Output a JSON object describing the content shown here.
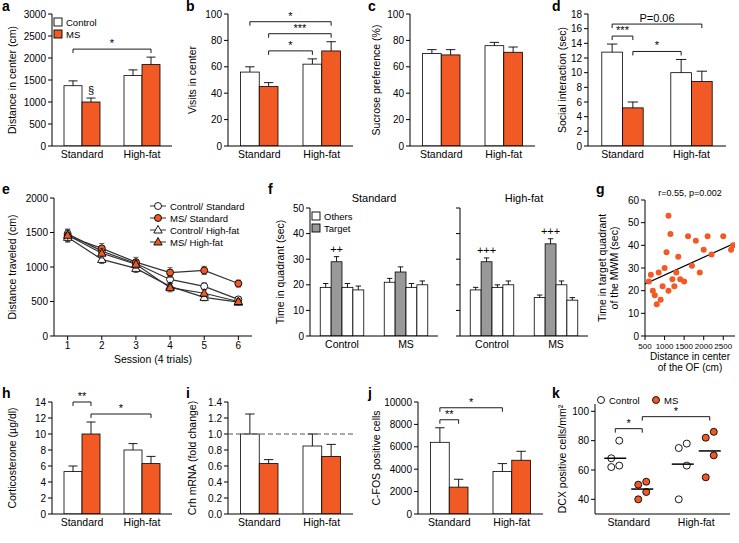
{
  "chart_data": [
    {
      "type": "bar",
      "title": "a",
      "ylabel": "Distance in center (cm)",
      "categories": [
        "Standard",
        "High-fat"
      ],
      "ylim": [
        0,
        3000
      ],
      "yticks": [
        0,
        500,
        1000,
        1500,
        2000,
        2500,
        3000
      ],
      "legend": "upper left",
      "series": [
        {
          "name": "Control",
          "color": "#ffffff",
          "values": [
            1370,
            1600
          ],
          "errors": [
            110,
            130
          ]
        },
        {
          "name": "MS",
          "color": "#f15a24",
          "values": [
            1000,
            1850
          ],
          "errors": [
            90,
            170
          ]
        }
      ],
      "annotations": [
        {
          "text": "§",
          "between": [
            1,
            1
          ]
        },
        {
          "text": "*",
          "between": [
            0,
            3
          ]
        }
      ]
    },
    {
      "type": "bar",
      "title": "b",
      "ylabel": "Visits in center",
      "categories": [
        "Standard",
        "High-fat"
      ],
      "ylim": [
        0,
        100
      ],
      "yticks": [
        0,
        20,
        40,
        60,
        80,
        100
      ],
      "series": [
        {
          "name": "Control",
          "color": "#ffffff",
          "values": [
            56,
            62
          ],
          "errors": [
            4,
            4
          ]
        },
        {
          "name": "MS",
          "color": "#f15a24",
          "values": [
            45,
            72
          ],
          "errors": [
            3,
            7
          ]
        }
      ],
      "annotations": [
        {
          "text": "*",
          "between": [
            1,
            2
          ]
        },
        {
          "text": "***",
          "between": [
            1,
            3
          ]
        },
        {
          "text": "*",
          "between": [
            0,
            3
          ]
        }
      ]
    },
    {
      "type": "bar",
      "title": "c",
      "ylabel": "Sucrose preference (%)",
      "categories": [
        "Standard",
        "High-fat"
      ],
      "ylim": [
        0,
        100
      ],
      "yticks": [
        0,
        20,
        40,
        60,
        80,
        100
      ],
      "series": [
        {
          "name": "Control",
          "color": "#ffffff",
          "values": [
            70,
            76
          ],
          "errors": [
            3,
            2.5
          ]
        },
        {
          "name": "MS",
          "color": "#f15a24",
          "values": [
            69,
            71
          ],
          "errors": [
            4,
            4
          ]
        }
      ]
    },
    {
      "type": "bar",
      "title": "d",
      "ylabel": "Social interaction (sec)",
      "categories": [
        "Standard",
        "High-fat"
      ],
      "ylim": [
        0,
        18
      ],
      "yticks": [
        0,
        2,
        4,
        6,
        8,
        10,
        12,
        14,
        16,
        18
      ],
      "series": [
        {
          "name": "Control",
          "color": "#ffffff",
          "values": [
            12.8,
            10
          ],
          "errors": [
            1.1,
            1.8
          ]
        },
        {
          "name": "MS",
          "color": "#f15a24",
          "values": [
            5.2,
            8.8
          ],
          "errors": [
            0.8,
            1.4
          ]
        }
      ],
      "annotations": [
        {
          "text": "*",
          "between": [
            1,
            2
          ]
        },
        {
          "text": "***",
          "between": [
            0,
            1
          ]
        },
        {
          "text": "P=0.06",
          "between": [
            0,
            3
          ]
        }
      ]
    },
    {
      "type": "line",
      "title": "e",
      "xlabel": "Session (4 trials)",
      "ylabel": "Distance traveled (cm)",
      "x": [
        1,
        2,
        3,
        4,
        5,
        6
      ],
      "xlim": [
        0.6,
        6.4
      ],
      "xticks": [
        1,
        2,
        3,
        4,
        5,
        6
      ],
      "ylim": [
        0,
        2000
      ],
      "yticks": [
        0,
        500,
        1000,
        1500,
        2000
      ],
      "legend": "upper right",
      "series": [
        {
          "name": "Control/ Standard",
          "color": "#ffffff",
          "marker": "circle",
          "values": [
            1480,
            1230,
            1050,
            820,
            720,
            530
          ],
          "errors": [
            70,
            60,
            60,
            60,
            50,
            40
          ]
        },
        {
          "name": "MS/ Standard",
          "color": "#f15a24",
          "marker": "circle",
          "values": [
            1450,
            1270,
            1070,
            920,
            950,
            760
          ],
          "errors": [
            80,
            70,
            70,
            70,
            60,
            50
          ]
        },
        {
          "name": "Control/ High-fat",
          "color": "#ffffff",
          "marker": "triangle",
          "values": [
            1430,
            1110,
            980,
            720,
            560,
            490
          ],
          "errors": [
            70,
            60,
            60,
            50,
            50,
            40
          ]
        },
        {
          "name": "MS/ High-fat",
          "color": "#f15a24",
          "marker": "triangle",
          "values": [
            1460,
            1200,
            1040,
            700,
            620,
            500
          ],
          "errors": [
            80,
            70,
            60,
            60,
            50,
            40
          ]
        }
      ]
    },
    {
      "type": "bar",
      "title": "f",
      "ylabel": "Time in quadrant (sec)",
      "ylim": [
        0,
        50
      ],
      "yticks": [
        0,
        10,
        20,
        30,
        40,
        50
      ],
      "legend": "upper left",
      "subplots": [
        {
          "title": "Standard",
          "categories": [
            "Control",
            "MS"
          ],
          "series": [
            {
              "name": "Others",
              "color": "#ffffff",
              "values": [
                19,
                21
              ],
              "errors": [
                1.5,
                1.5
              ]
            },
            {
              "name": "Target",
              "color": "#999999",
              "values": [
                29,
                25
              ],
              "errors": [
                2,
                2
              ]
            },
            {
              "name": "Others",
              "color": "#ffffff",
              "values": [
                19,
                19
              ],
              "errors": [
                1.5,
                1.5
              ]
            },
            {
              "name": "Others",
              "color": "#ffffff",
              "values": [
                18,
                20
              ],
              "errors": [
                1.5,
                1.5
              ]
            }
          ],
          "annotations": [
            {
              "text": "++",
              "between": [
                1,
                1
              ]
            }
          ]
        },
        {
          "title": "High-fat",
          "categories": [
            "Control",
            "MS"
          ],
          "series": [
            {
              "name": "Others",
              "color": "#ffffff",
              "values": [
                18,
                15
              ],
              "errors": [
                1,
                1
              ]
            },
            {
              "name": "Target",
              "color": "#999999",
              "values": [
                29,
                36
              ],
              "errors": [
                1.5,
                2
              ]
            },
            {
              "name": "Others",
              "color": "#ffffff",
              "values": [
                19,
                20
              ],
              "errors": [
                1,
                1.5
              ]
            },
            {
              "name": "Others",
              "color": "#ffffff",
              "values": [
                20,
                14
              ],
              "errors": [
                1.5,
                1
              ]
            }
          ],
          "annotations": [
            {
              "text": "+++",
              "between": [
                1,
                1
              ]
            },
            {
              "text": "+++",
              "between": [
                5,
                5
              ]
            }
          ]
        }
      ]
    },
    {
      "type": "scatter",
      "title": "g",
      "xlabel": [
        "Distance in center",
        "of the OF (cm)"
      ],
      "ylabel": [
        "Time in target quadrant",
        "of the MWM (sec)"
      ],
      "xlim": [
        500,
        2800
      ],
      "xticks": [
        500,
        1000,
        1500,
        2000,
        2500
      ],
      "ylim": [
        0,
        60
      ],
      "yticks": [
        0,
        10,
        20,
        30,
        40,
        50,
        60
      ],
      "color": "#f15a24",
      "x": [
        600,
        650,
        700,
        750,
        800,
        850,
        900,
        950,
        1000,
        1050,
        1100,
        1100,
        1150,
        1200,
        1250,
        1300,
        1350,
        1400,
        1500,
        1600,
        1700,
        1800,
        1900,
        2000,
        2100,
        2200,
        2500,
        2700,
        2750
      ],
      "values": [
        24,
        27,
        20,
        18,
        14,
        28,
        16,
        22,
        30,
        37,
        53,
        20,
        45,
        25,
        22,
        28,
        35,
        25,
        24,
        44,
        31,
        42,
        28,
        38,
        44,
        36,
        44,
        38,
        40
      ],
      "fit": {
        "x": [
          500,
          2800
        ],
        "y": [
          23,
          41
        ]
      },
      "annotations": [
        {
          "text": "r=0.55, p=0.002"
        }
      ]
    },
    {
      "type": "bar",
      "title": "h",
      "ylabel": "Corticosterone (µg/dl)",
      "categories": [
        "Standard",
        "High-fat"
      ],
      "ylim": [
        0,
        14
      ],
      "yticks": [
        0,
        2,
        4,
        6,
        8,
        10,
        12,
        14
      ],
      "series": [
        {
          "name": "Control",
          "color": "#ffffff",
          "values": [
            5.3,
            8
          ],
          "errors": [
            0.7,
            0.8
          ]
        },
        {
          "name": "MS",
          "color": "#f15a24",
          "values": [
            10,
            6.3
          ],
          "errors": [
            1.5,
            0.9
          ]
        }
      ],
      "annotations": [
        {
          "text": "*",
          "between": [
            1,
            3
          ]
        },
        {
          "text": "**",
          "between": [
            0,
            1
          ]
        }
      ]
    },
    {
      "type": "bar",
      "title": "i",
      "ylabel": "Crh mRNA (fold change)",
      "categories": [
        "Standard",
        "High-fat"
      ],
      "ylim": [
        0,
        1.4
      ],
      "yticks": [
        {
          "value": 0,
          "label": "0.0"
        },
        0.2,
        0.4,
        0.6,
        0.8,
        {
          "value": 1,
          "label": "1.0"
        },
        1.2,
        1.4
      ],
      "reference_line": 1,
      "series": [
        {
          "name": "Control",
          "color": "#ffffff",
          "values": [
            1.0,
            0.85
          ],
          "errors": [
            0.25,
            0.15
          ]
        },
        {
          "name": "MS",
          "color": "#f15a24",
          "values": [
            0.63,
            0.72
          ],
          "errors": [
            0.05,
            0.15
          ]
        }
      ]
    },
    {
      "type": "bar",
      "title": "j",
      "ylabel": "C-FOS positive cells",
      "categories": [
        "Standard",
        "High-fat"
      ],
      "ylim": [
        0,
        10000
      ],
      "yticks": [
        0,
        2000,
        4000,
        6000,
        8000,
        10000
      ],
      "series": [
        {
          "name": "Control",
          "color": "#ffffff",
          "values": [
            6400,
            3800
          ],
          "errors": [
            1300,
            700
          ]
        },
        {
          "name": "MS",
          "color": "#f15a24",
          "values": [
            2400,
            4800
          ],
          "errors": [
            700,
            800
          ]
        }
      ],
      "annotations": [
        {
          "text": "**",
          "between": [
            0,
            1
          ]
        },
        {
          "text": "*",
          "between": [
            0,
            2
          ]
        }
      ]
    },
    {
      "type": "strip",
      "title": "k",
      "ylabel": "DCX positive cells/mm²",
      "categories": [
        "Standard",
        "High-fat"
      ],
      "ylim": [
        30,
        105
      ],
      "yticks": [
        40,
        60,
        80,
        100
      ],
      "legend": "top",
      "series": [
        {
          "name": "Control",
          "color": "#ffffff",
          "values": [
            [
              62,
              63,
              68,
              80
            ],
            [
              40,
              63,
              75,
              78
            ]
          ],
          "means": [
            68,
            64
          ]
        },
        {
          "name": "MS",
          "color": "#f15a24",
          "values": [
            [
              40,
              45,
              50,
              52
            ],
            [
              55,
              70,
              82,
              86
            ]
          ],
          "means": [
            47,
            73
          ]
        }
      ],
      "annotations": [
        {
          "text": "*",
          "between": [
            0,
            1
          ]
        },
        {
          "text": "*",
          "between": [
            1,
            3
          ]
        }
      ]
    }
  ]
}
